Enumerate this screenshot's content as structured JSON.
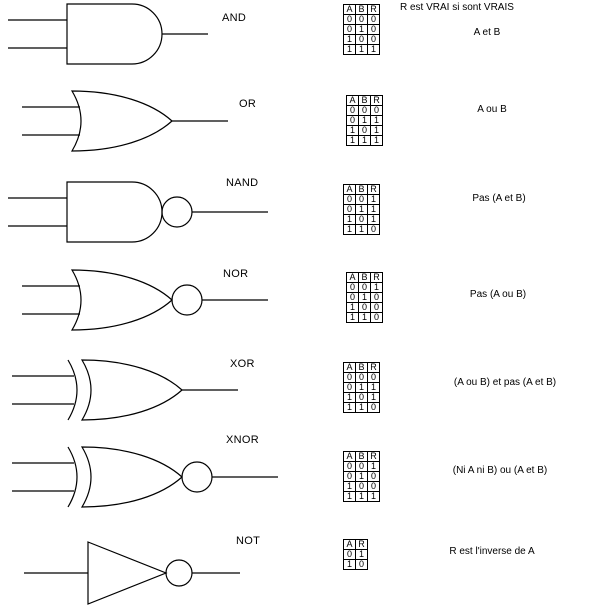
{
  "header_note": "R est VRAI si sont VRAIS",
  "gates": [
    {
      "name": "AND",
      "kind": "and",
      "headers": [
        "A",
        "B",
        "R"
      ],
      "rows": [
        [
          "0",
          "0",
          "0"
        ],
        [
          "0",
          "1",
          "0"
        ],
        [
          "1",
          "0",
          "0"
        ],
        [
          "1",
          "1",
          "1"
        ]
      ],
      "description": "A et B"
    },
    {
      "name": "OR",
      "kind": "or",
      "headers": [
        "A",
        "B",
        "R"
      ],
      "rows": [
        [
          "0",
          "0",
          "0"
        ],
        [
          "0",
          "1",
          "1"
        ],
        [
          "1",
          "0",
          "1"
        ],
        [
          "1",
          "1",
          "1"
        ]
      ],
      "description": "A ou B"
    },
    {
      "name": "NAND",
      "kind": "nand",
      "headers": [
        "A",
        "B",
        "R"
      ],
      "rows": [
        [
          "0",
          "0",
          "1"
        ],
        [
          "0",
          "1",
          "1"
        ],
        [
          "1",
          "0",
          "1"
        ],
        [
          "1",
          "1",
          "0"
        ]
      ],
      "description": "Pas (A et B)"
    },
    {
      "name": "NOR",
      "kind": "nor",
      "headers": [
        "A",
        "B",
        "R"
      ],
      "rows": [
        [
          "0",
          "0",
          "1"
        ],
        [
          "0",
          "1",
          "0"
        ],
        [
          "1",
          "0",
          "0"
        ],
        [
          "1",
          "1",
          "0"
        ]
      ],
      "description": "Pas (A ou B)"
    },
    {
      "name": "XOR",
      "kind": "xor",
      "headers": [
        "A",
        "B",
        "R"
      ],
      "rows": [
        [
          "0",
          "0",
          "0"
        ],
        [
          "0",
          "1",
          "1"
        ],
        [
          "1",
          "0",
          "1"
        ],
        [
          "1",
          "1",
          "0"
        ]
      ],
      "description": "(A ou B) et pas (A et B)"
    },
    {
      "name": "XNOR",
      "kind": "xnor",
      "headers": [
        "A",
        "B",
        "R"
      ],
      "rows": [
        [
          "0",
          "0",
          "1"
        ],
        [
          "0",
          "1",
          "0"
        ],
        [
          "1",
          "0",
          "0"
        ],
        [
          "1",
          "1",
          "1"
        ]
      ],
      "description": "(Ni A ni B) ou (A et B)"
    },
    {
      "name": "NOT",
      "kind": "not",
      "headers": [
        "A",
        "R"
      ],
      "rows": [
        [
          "0",
          "1"
        ],
        [
          "1",
          "0"
        ]
      ],
      "description": "R est l'inverse de A"
    }
  ]
}
